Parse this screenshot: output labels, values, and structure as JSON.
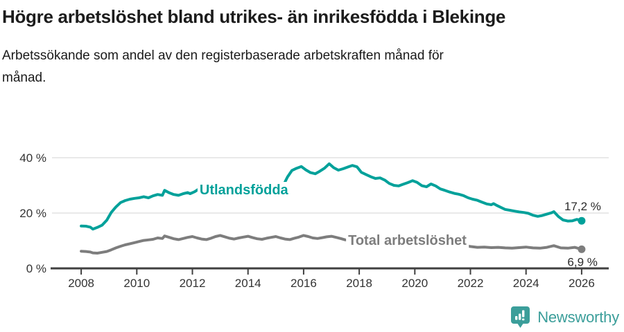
{
  "chart_data": {
    "type": "line",
    "title": "Högre arbetslöshet bland utrikes- än inrikesfödda i Blekinge",
    "subtitle_line1": "Arbetssökande som andel av den registerbaserade arbetskraften månad för",
    "subtitle_line2": "månad.",
    "x_axis": {
      "range": [
        2006.95,
        2026.9
      ],
      "ticks": [
        2008,
        2010,
        2012,
        2014,
        2016,
        2018,
        2020,
        2022,
        2024,
        2026
      ]
    },
    "y_axis": {
      "range": [
        0,
        44
      ],
      "ticks": [
        0,
        20,
        40
      ],
      "tick_labels": [
        "0 %",
        "20 %",
        "40 %"
      ],
      "gridlines": true
    },
    "legend_position": "inline-labels",
    "colors": {
      "utlandsfodda": "#00a19a",
      "total": "#7d7d7d",
      "axis": "#404040",
      "grid": "#e2e2e2",
      "tick_text": "#333333"
    },
    "series": [
      {
        "id": "total",
        "name": "Total arbetslöshet",
        "color_key": "total",
        "end_label": "6,9 %",
        "end_value": 6.9,
        "label_anchor": {
          "x": 2017.6,
          "y": 8.5
        },
        "end_label_offset": [
          23,
          24
        ],
        "points": [
          [
            2008.0,
            6.2
          ],
          [
            2008.17,
            6.1
          ],
          [
            2008.33,
            5.9
          ],
          [
            2008.42,
            5.6
          ],
          [
            2008.58,
            5.5
          ],
          [
            2008.75,
            5.8
          ],
          [
            2008.92,
            6.1
          ],
          [
            2009.08,
            6.7
          ],
          [
            2009.25,
            7.4
          ],
          [
            2009.42,
            8.0
          ],
          [
            2009.58,
            8.5
          ],
          [
            2009.75,
            8.9
          ],
          [
            2009.92,
            9.3
          ],
          [
            2010.08,
            9.7
          ],
          [
            2010.25,
            10.1
          ],
          [
            2010.42,
            10.3
          ],
          [
            2010.58,
            10.5
          ],
          [
            2010.75,
            11.0
          ],
          [
            2010.92,
            10.8
          ],
          [
            2011.0,
            11.7
          ],
          [
            2011.17,
            11.2
          ],
          [
            2011.33,
            10.7
          ],
          [
            2011.5,
            10.4
          ],
          [
            2011.67,
            10.8
          ],
          [
            2011.83,
            11.2
          ],
          [
            2012.0,
            11.5
          ],
          [
            2012.17,
            11.0
          ],
          [
            2012.33,
            10.6
          ],
          [
            2012.5,
            10.4
          ],
          [
            2012.67,
            10.9
          ],
          [
            2012.83,
            11.5
          ],
          [
            2013.0,
            11.9
          ],
          [
            2013.17,
            11.4
          ],
          [
            2013.33,
            10.9
          ],
          [
            2013.5,
            10.6
          ],
          [
            2013.67,
            11.0
          ],
          [
            2013.83,
            11.3
          ],
          [
            2014.0,
            11.6
          ],
          [
            2014.17,
            11.1
          ],
          [
            2014.33,
            10.7
          ],
          [
            2014.5,
            10.5
          ],
          [
            2014.67,
            10.9
          ],
          [
            2014.83,
            11.2
          ],
          [
            2015.0,
            11.5
          ],
          [
            2015.17,
            11.0
          ],
          [
            2015.33,
            10.6
          ],
          [
            2015.5,
            10.4
          ],
          [
            2015.67,
            10.9
          ],
          [
            2015.83,
            11.3
          ],
          [
            2016.0,
            11.9
          ],
          [
            2016.17,
            11.5
          ],
          [
            2016.33,
            11.0
          ],
          [
            2016.5,
            10.8
          ],
          [
            2016.67,
            11.1
          ],
          [
            2016.83,
            11.4
          ],
          [
            2017.0,
            11.6
          ],
          [
            2017.17,
            11.2
          ],
          [
            2017.33,
            10.8
          ],
          [
            2017.5,
            10.3
          ],
          [
            2017.75,
            10.0
          ],
          [
            2018.0,
            10.2
          ],
          [
            2018.5,
            9.6
          ],
          [
            2019.0,
            9.3
          ],
          [
            2019.5,
            9.2
          ],
          [
            2020.0,
            9.8
          ],
          [
            2020.42,
            10.6
          ],
          [
            2020.83,
            10.1
          ],
          [
            2021.25,
            9.2
          ],
          [
            2021.67,
            8.4
          ],
          [
            2022.0,
            7.9
          ],
          [
            2022.25,
            7.6
          ],
          [
            2022.5,
            7.7
          ],
          [
            2022.75,
            7.5
          ],
          [
            2023.0,
            7.6
          ],
          [
            2023.25,
            7.4
          ],
          [
            2023.5,
            7.3
          ],
          [
            2023.75,
            7.5
          ],
          [
            2024.0,
            7.7
          ],
          [
            2024.25,
            7.4
          ],
          [
            2024.5,
            7.3
          ],
          [
            2024.75,
            7.6
          ],
          [
            2025.0,
            8.2
          ],
          [
            2025.25,
            7.4
          ],
          [
            2025.5,
            7.3
          ],
          [
            2025.75,
            7.6
          ],
          [
            2026.0,
            6.9
          ]
        ]
      },
      {
        "id": "utlandsfodda",
        "name": "Utlandsfödda",
        "color_key": "utlandsfodda",
        "end_label": "17,2 %",
        "end_value": 17.2,
        "label_anchor": {
          "x": 2012.26,
          "y": 26.75
        },
        "end_label_offset": [
          28,
          -15
        ],
        "points": [
          [
            2008.0,
            15.3
          ],
          [
            2008.17,
            15.25
          ],
          [
            2008.33,
            14.9
          ],
          [
            2008.42,
            14.2
          ],
          [
            2008.58,
            14.8
          ],
          [
            2008.75,
            15.6
          ],
          [
            2008.92,
            17.4
          ],
          [
            2009.08,
            20.2
          ],
          [
            2009.25,
            22.2
          ],
          [
            2009.42,
            23.8
          ],
          [
            2009.58,
            24.5
          ],
          [
            2009.75,
            25.0
          ],
          [
            2009.92,
            25.3
          ],
          [
            2010.08,
            25.5
          ],
          [
            2010.25,
            25.9
          ],
          [
            2010.42,
            25.5
          ],
          [
            2010.58,
            26.2
          ],
          [
            2010.75,
            26.7
          ],
          [
            2010.92,
            26.4
          ],
          [
            2011.0,
            28.2
          ],
          [
            2011.17,
            27.3
          ],
          [
            2011.33,
            26.7
          ],
          [
            2011.5,
            26.4
          ],
          [
            2011.67,
            27.0
          ],
          [
            2011.83,
            27.4
          ],
          [
            2011.92,
            27.0
          ],
          [
            2012.08,
            27.7
          ],
          [
            2012.25,
            28.8
          ],
          [
            2012.42,
            27.9
          ],
          [
            2012.58,
            27.5
          ],
          [
            2012.75,
            27.9
          ],
          [
            2012.92,
            28.5
          ],
          [
            2013.08,
            27.9
          ],
          [
            2013.25,
            27.5
          ],
          [
            2013.42,
            27.2
          ],
          [
            2013.58,
            27.6
          ],
          [
            2013.75,
            27.8
          ],
          [
            2013.92,
            27.4
          ],
          [
            2014.08,
            27.9
          ],
          [
            2014.25,
            27.5
          ],
          [
            2014.42,
            27.1
          ],
          [
            2014.58,
            27.5
          ],
          [
            2014.75,
            27.9
          ],
          [
            2014.92,
            28.3
          ],
          [
            2015.08,
            28.7
          ],
          [
            2015.25,
            29.6
          ],
          [
            2015.42,
            33.0
          ],
          [
            2015.58,
            35.4
          ],
          [
            2015.75,
            36.2
          ],
          [
            2015.92,
            36.8
          ],
          [
            2016.08,
            35.6
          ],
          [
            2016.25,
            34.6
          ],
          [
            2016.42,
            34.2
          ],
          [
            2016.58,
            35.1
          ],
          [
            2016.75,
            36.2
          ],
          [
            2016.92,
            37.8
          ],
          [
            2017.08,
            36.4
          ],
          [
            2017.25,
            35.5
          ],
          [
            2017.42,
            36.0
          ],
          [
            2017.58,
            36.6
          ],
          [
            2017.75,
            37.2
          ],
          [
            2017.92,
            36.7
          ],
          [
            2018.08,
            34.7
          ],
          [
            2018.25,
            33.9
          ],
          [
            2018.42,
            33.1
          ],
          [
            2018.58,
            32.5
          ],
          [
            2018.75,
            32.7
          ],
          [
            2018.92,
            31.9
          ],
          [
            2019.08,
            30.7
          ],
          [
            2019.25,
            30.0
          ],
          [
            2019.42,
            29.8
          ],
          [
            2019.58,
            30.4
          ],
          [
            2019.75,
            31.0
          ],
          [
            2019.92,
            31.7
          ],
          [
            2020.08,
            31.1
          ],
          [
            2020.25,
            29.9
          ],
          [
            2020.42,
            29.5
          ],
          [
            2020.58,
            30.5
          ],
          [
            2020.75,
            29.8
          ],
          [
            2020.92,
            28.7
          ],
          [
            2021.08,
            28.2
          ],
          [
            2021.25,
            27.6
          ],
          [
            2021.42,
            27.1
          ],
          [
            2021.58,
            26.8
          ],
          [
            2021.75,
            26.3
          ],
          [
            2021.92,
            25.5
          ],
          [
            2022.08,
            25.0
          ],
          [
            2022.25,
            24.6
          ],
          [
            2022.42,
            23.9
          ],
          [
            2022.58,
            23.3
          ],
          [
            2022.75,
            23.0
          ],
          [
            2022.83,
            23.4
          ],
          [
            2022.92,
            22.9
          ],
          [
            2023.08,
            22.1
          ],
          [
            2023.25,
            21.3
          ],
          [
            2023.42,
            21.0
          ],
          [
            2023.58,
            20.7
          ],
          [
            2023.75,
            20.4
          ],
          [
            2023.92,
            20.2
          ],
          [
            2024.08,
            19.9
          ],
          [
            2024.25,
            19.2
          ],
          [
            2024.42,
            18.8
          ],
          [
            2024.58,
            19.1
          ],
          [
            2024.75,
            19.6
          ],
          [
            2024.92,
            20.1
          ],
          [
            2025.0,
            20.5
          ],
          [
            2025.17,
            18.7
          ],
          [
            2025.33,
            17.5
          ],
          [
            2025.5,
            17.1
          ],
          [
            2025.67,
            17.2
          ],
          [
            2025.83,
            17.7
          ],
          [
            2026.0,
            17.2
          ]
        ]
      }
    ]
  },
  "footer": {
    "brand": "Newsworthy",
    "logo_icon": "bar-chart-speech-bubble-icon",
    "brand_color": "#3b9e9a"
  }
}
